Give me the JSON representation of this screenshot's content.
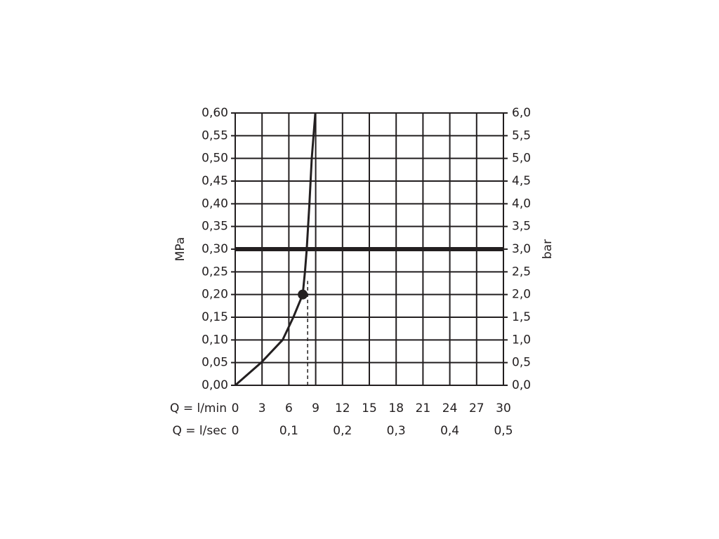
{
  "chart_data": {
    "type": "line",
    "y_label": "MPa",
    "y2_label": "bar",
    "x_label": "Q = l/min",
    "x2_label": "Q = l/sec",
    "series": [
      {
        "color": "#231f20",
        "x": [
          0,
          2.9,
          5.3,
          6.5,
          7.55,
          7.8,
          8.0,
          8.3,
          8.56,
          8.96
        ],
        "values": [
          0,
          0.05,
          0.1,
          0.15,
          0.2,
          0.25,
          0.3,
          0.4,
          0.5,
          0.6
        ]
      }
    ],
    "marker": {
      "x": 7.55,
      "y": 0.2
    },
    "reference_line": {
      "x": 8.1,
      "y_from": 0,
      "y_to": 0.23
    },
    "hline": 0.3,
    "xlim": [
      0,
      30
    ],
    "xticks": [
      0,
      3,
      6,
      9,
      12,
      15,
      18,
      21,
      24,
      27,
      30
    ],
    "x2lim": [
      0,
      0.5
    ],
    "x2ticks": [
      0,
      {
        "value": 0.1,
        "label": "0,1"
      },
      {
        "value": 0.2,
        "label": "0,2"
      },
      {
        "value": 0.3,
        "label": "0,3"
      },
      {
        "value": 0.4,
        "label": "0,4"
      },
      {
        "value": 0.5,
        "label": "0,5"
      }
    ],
    "ylim": [
      0,
      0.6
    ],
    "yticks": [
      {
        "value": 0,
        "label": "0,00"
      },
      {
        "value": 0.05,
        "label": "0,05"
      },
      {
        "value": 0.1,
        "label": "0,10"
      },
      {
        "value": 0.15,
        "label": "0,15"
      },
      {
        "value": 0.2,
        "label": "0,20"
      },
      {
        "value": 0.25,
        "label": "0,25"
      },
      {
        "value": 0.3,
        "label": "0,30"
      },
      {
        "value": 0.35,
        "label": "0,35"
      },
      {
        "value": 0.4,
        "label": "0,40"
      },
      {
        "value": 0.45,
        "label": "0,45"
      },
      {
        "value": 0.5,
        "label": "0,50"
      },
      {
        "value": 0.55,
        "label": "0,55"
      },
      {
        "value": 0.6,
        "label": "0,60"
      }
    ],
    "y2lim": [
      0,
      6
    ],
    "y2ticks": [
      {
        "value": 0,
        "label": "0,0"
      },
      {
        "value": 0.5,
        "label": "0,5"
      },
      {
        "value": 1,
        "label": "1,0"
      },
      {
        "value": 1.5,
        "label": "1,5"
      },
      {
        "value": 2,
        "label": "2,0"
      },
      {
        "value": 2.5,
        "label": "2,5"
      },
      {
        "value": 3,
        "label": "3,0"
      },
      {
        "value": 3.5,
        "label": "3,5"
      },
      {
        "value": 4,
        "label": "4,0"
      },
      {
        "value": 4.5,
        "label": "4,5"
      },
      {
        "value": 5,
        "label": "5,0"
      },
      {
        "value": 5.5,
        "label": "5,5"
      },
      {
        "value": 6,
        "label": "6,0"
      }
    ],
    "grid": true
  }
}
